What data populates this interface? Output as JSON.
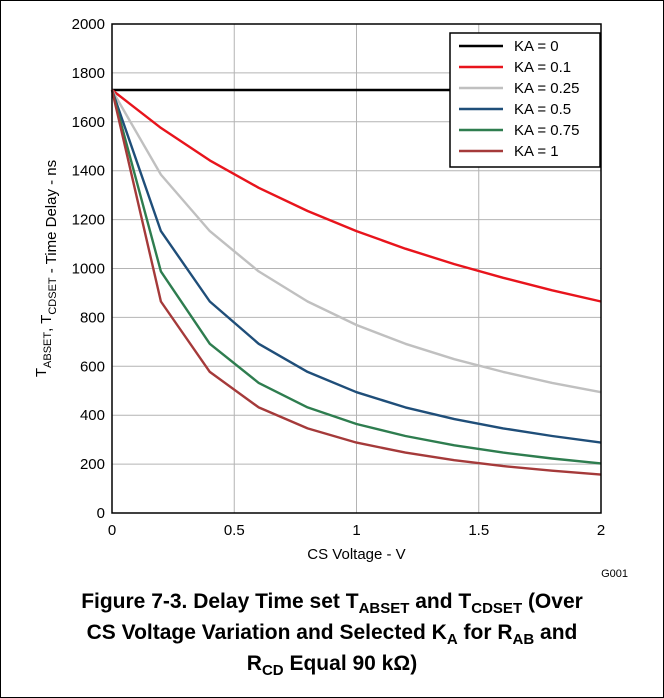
{
  "chart_data": {
    "type": "line",
    "xlabel": "CS Voltage - V",
    "ylabel": {
      "parts": [
        {
          "text": "T",
          "sub": "ABSET"
        },
        {
          "text": ", T",
          "sub": "CDSET"
        },
        {
          "text": " - Time Delay - ns",
          "sub": ""
        }
      ]
    },
    "xlim": [
      0,
      2
    ],
    "ylim": [
      0,
      2000
    ],
    "x_ticks": [
      "0",
      "0.5",
      "1",
      "1.5",
      "2"
    ],
    "y_ticks": [
      "0",
      "200",
      "400",
      "600",
      "800",
      "1000",
      "1200",
      "1400",
      "1600",
      "1800",
      "2000"
    ],
    "grid": true,
    "legend_position": "top-right",
    "x": [
      0,
      0.2,
      0.4,
      0.6,
      0.8,
      1.0,
      1.2,
      1.4,
      1.6,
      1.8,
      2.0
    ],
    "series": [
      {
        "name": "KA = 0",
        "color": "#000000",
        "values": [
          1730,
          1730,
          1730,
          1730,
          1730,
          1730,
          1730,
          1730,
          1730,
          1730,
          1730
        ]
      },
      {
        "name": "KA = 0.1",
        "color": "#e8141c",
        "values": [
          1730,
          1575,
          1442,
          1330,
          1235,
          1153,
          1081,
          1018,
          962,
          911,
          865
        ]
      },
      {
        "name": "KA = 0.25",
        "color": "#c0c0c0",
        "values": [
          1730,
          1384,
          1153,
          988,
          865,
          769,
          692,
          629,
          577,
          532,
          494
        ]
      },
      {
        "name": "KA = 0.5",
        "color": "#1f4e79",
        "values": [
          1730,
          1153,
          865,
          692,
          577,
          494,
          432,
          384,
          346,
          315,
          288
        ]
      },
      {
        "name": "KA = 0.75",
        "color": "#2e7d4f",
        "values": [
          1730,
          988,
          692,
          532,
          432,
          364,
          315,
          277,
          247,
          223,
          203
        ]
      },
      {
        "name": "KA = 1",
        "color": "#a53a3a",
        "values": [
          1730,
          865,
          577,
          432,
          346,
          288,
          247,
          216,
          192,
          173,
          157
        ]
      }
    ],
    "code": "G001"
  },
  "caption": {
    "line1": [
      {
        "text": "Figure 7-3. Delay Time set T",
        "sub": "ABSET"
      },
      {
        "text": " and T",
        "sub": "CDSET"
      },
      {
        "text": " (Over",
        "sub": ""
      }
    ],
    "line2": [
      {
        "text": "CS Voltage Variation and Selected K",
        "sub": "A"
      },
      {
        "text": " for R",
        "sub": "AB"
      },
      {
        "text": " and",
        "sub": ""
      }
    ],
    "line3": [
      {
        "text": "R",
        "sub": "CD"
      },
      {
        "text": " Equal 90 kΩ)",
        "sub": ""
      }
    ]
  }
}
